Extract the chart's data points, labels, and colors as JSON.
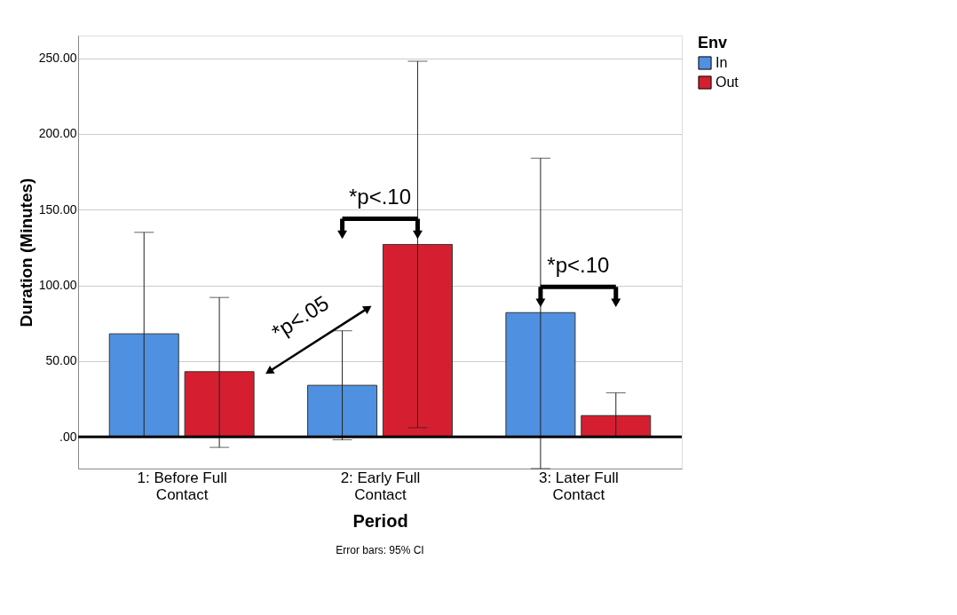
{
  "chart_data": {
    "type": "bar",
    "xlabel": "Period",
    "ylabel": "Duration (Minutes)",
    "legend_title": "Env",
    "legend": "right",
    "grid": "y",
    "categories": [
      "1: Before Full Contact",
      "2: Early Full Contact",
      "3: Later Full Contact"
    ],
    "series": [
      {
        "name": "In",
        "color": "#4f90e0",
        "values": [
          68,
          34,
          82
        ],
        "errors": [
          [
            0,
            135
          ],
          [
            -2,
            70
          ],
          [
            -21,
            184
          ]
        ]
      },
      {
        "name": "Out",
        "color": "#d51f30",
        "values": [
          43,
          127,
          14
        ],
        "errors": [
          [
            -7,
            92
          ],
          [
            6,
            248
          ],
          [
            0,
            29
          ]
        ]
      }
    ],
    "ylim": [
      -21,
      265
    ],
    "yticks": [
      {
        "value": 0,
        "label": ".00"
      },
      {
        "value": 50,
        "label": "50.00"
      },
      {
        "value": 100,
        "label": "100.00"
      },
      {
        "value": 150,
        "label": "150.00"
      },
      {
        "value": 200,
        "label": "200.00"
      },
      {
        "value": 250,
        "label": "250.00"
      }
    ],
    "ref_lines": [
      {
        "axis": "y",
        "value": 0,
        "color": "#000000"
      }
    ],
    "annotations": [
      "*p<.10",
      "*p<.10",
      "*p<.05",
      "Error bars: 95% CI"
    ]
  }
}
